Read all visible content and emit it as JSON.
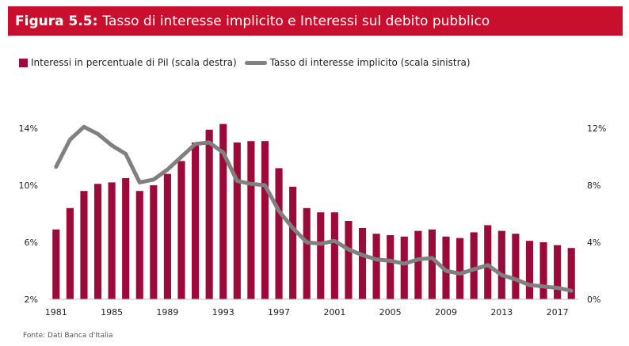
{
  "header": {
    "label": "Figura 5.5:",
    "title": "Tasso di interesse implicito e Interessi sul debito pubblico"
  },
  "source": "Fonte: Dati Banca d'Italia",
  "chart_data": {
    "type": "bar+line",
    "x": [
      1981,
      1982,
      1983,
      1984,
      1985,
      1986,
      1987,
      1988,
      1989,
      1990,
      1991,
      1992,
      1993,
      1994,
      1995,
      1996,
      1997,
      1998,
      1999,
      2000,
      2001,
      2002,
      2003,
      2004,
      2005,
      2006,
      2007,
      2008,
      2009,
      2010,
      2011,
      2012,
      2013,
      2014,
      2015,
      2016,
      2017,
      2018
    ],
    "x_tick_labels": [
      "1981",
      "1985",
      "1989",
      "1993",
      "1997",
      "2001",
      "2005",
      "2009",
      "2013",
      "2017"
    ],
    "series": [
      {
        "name": "Interessi in percentuale di Pil (scala destra)",
        "type": "bar",
        "axis": "right",
        "color": "#9c0a3a",
        "values": [
          4.9,
          6.4,
          7.6,
          8.1,
          8.2,
          8.5,
          7.6,
          8.0,
          8.8,
          9.7,
          11.0,
          11.9,
          12.3,
          11.0,
          11.1,
          11.1,
          9.2,
          7.9,
          6.4,
          6.1,
          6.1,
          5.5,
          5.0,
          4.6,
          4.5,
          4.4,
          4.8,
          4.9,
          4.4,
          4.3,
          4.7,
          5.2,
          4.8,
          4.6,
          4.1,
          4.0,
          3.8,
          3.6
        ]
      },
      {
        "name": "Tasso di interesse implicito (scala sinistra)",
        "type": "line",
        "axis": "left",
        "color": "#808080",
        "values": [
          11.3,
          13.2,
          14.1,
          13.6,
          12.8,
          12.2,
          10.2,
          10.4,
          11.1,
          12.0,
          12.9,
          13.0,
          12.3,
          10.3,
          10.1,
          10.0,
          8.2,
          7.0,
          6.0,
          5.9,
          6.1,
          5.5,
          5.1,
          4.8,
          4.7,
          4.5,
          4.8,
          4.9,
          4.0,
          3.8,
          4.1,
          4.4,
          3.7,
          3.4,
          3.0,
          2.9,
          2.8,
          2.6
        ]
      }
    ],
    "y_left": {
      "range": [
        2,
        16
      ],
      "tick_values": [
        2,
        6,
        10,
        14
      ],
      "tick_labels": [
        "2%",
        "6%",
        "10%",
        "14%"
      ]
    },
    "y_right": {
      "range": [
        0,
        14
      ],
      "tick_values": [
        0,
        4,
        8,
        12
      ],
      "tick_labels": [
        "0%",
        "4%",
        "8%",
        "12%"
      ]
    },
    "legend_position": "top-left",
    "grid": false
  }
}
